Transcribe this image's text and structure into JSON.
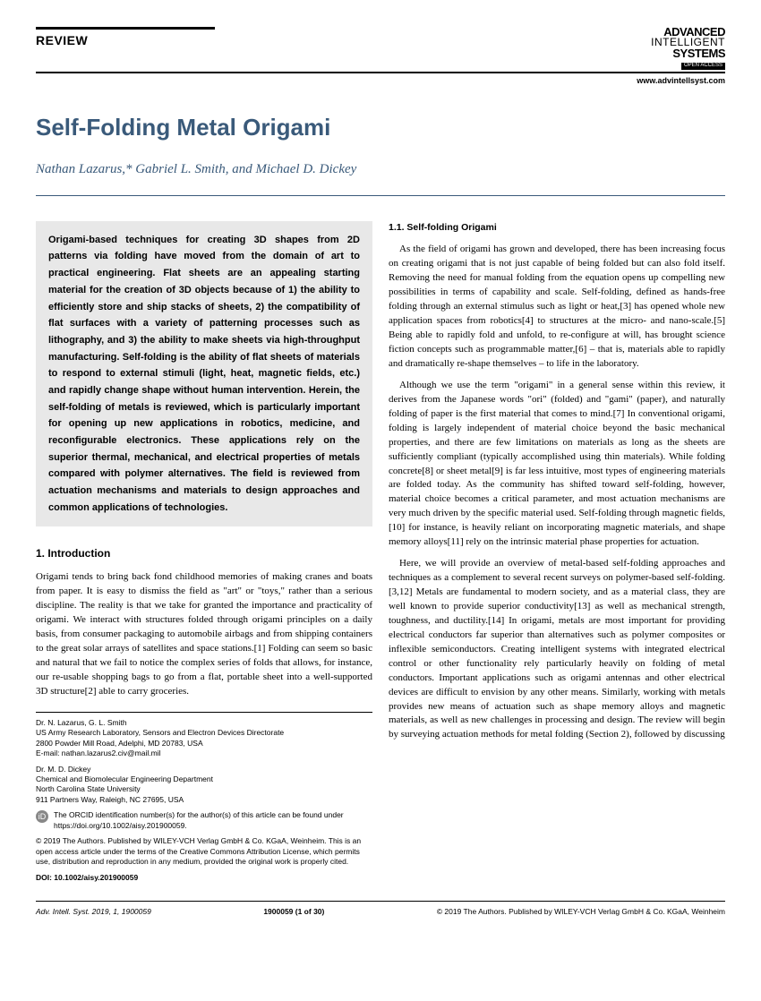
{
  "header": {
    "review_label": "REVIEW",
    "logo": {
      "line1": "ADVANCED",
      "line2": "INTELLIGENT",
      "line3": "SYSTEMS",
      "access": "OPEN ACCESS"
    },
    "url": "www.advintellsyst.com"
  },
  "title": "Self-Folding Metal Origami",
  "authors": "Nathan Lazarus,* Gabriel L. Smith, and Michael D. Dickey",
  "abstract": "Origami-based techniques for creating 3D shapes from 2D patterns via folding have moved from the domain of art to practical engineering. Flat sheets are an appealing starting material for the creation of 3D objects because of 1) the ability to efficiently store and ship stacks of sheets, 2) the compatibility of flat surfaces with a variety of patterning processes such as lithography, and 3) the ability to make sheets via high-throughput manufacturing. Self-folding is the ability of flat sheets of materials to respond to external stimuli (light, heat, magnetic fields, etc.) and rapidly change shape without human intervention. Herein, the self-folding of metals is reviewed, which is particularly important for opening up new applications in robotics, medicine, and reconfigurable electronics. These applications rely on the superior thermal, mechanical, and electrical properties of metals compared with polymer alternatives. The field is reviewed from actuation mechanisms and materials to design approaches and common applications of technologies.",
  "section1": {
    "heading": "1. Introduction",
    "para1": "Origami tends to bring back fond childhood memories of making cranes and boats from paper. It is easy to dismiss the field as \"art\" or \"toys,\" rather than a serious discipline. The reality is that we take for granted the importance and practicality of origami. We interact with structures folded through origami principles on a daily basis, from consumer packaging to automobile airbags and from shipping containers to the great solar arrays of satellites and space stations.[1] Folding can seem so basic and natural that we fail to notice the complex series of folds that allows, for instance, our re-usable shopping bags to go from a flat, portable sheet into a well-supported 3D structure[2] able to carry groceries."
  },
  "subsection11": {
    "heading": "1.1. Self-folding Origami",
    "para1": "As the field of origami has grown and developed, there has been increasing focus on creating origami that is not just capable of being folded but can also fold itself. Removing the need for manual folding from the equation opens up compelling new possibilities in terms of capability and scale. Self-folding, defined as hands-free folding through an external stimulus such as light or heat,[3] has opened whole new application spaces from robotics[4] to structures at the micro- and nano-scale.[5] Being able to rapidly fold and unfold, to re-configure at will, has brought science fiction concepts such as programmable matter,[6] – that is, materials able to rapidly and dramatically re-shape themselves – to life in the laboratory.",
    "para2": "Although we use the term \"origami\" in a general sense within this review, it derives from the Japanese words \"ori\" (folded) and \"gami\" (paper), and naturally folding of paper is the first material that comes to mind.[7] In conventional origami, folding is largely independent of material choice beyond the basic mechanical properties, and there are few limitations on materials as long as the sheets are sufficiently compliant (typically accomplished using thin materials). While folding concrete[8] or sheet metal[9] is far less intuitive, most types of engineering materials are folded today. As the community has shifted toward self-folding, however, material choice becomes a critical parameter, and most actuation mechanisms are very much driven by the specific material used. Self-folding through magnetic fields,[10] for instance, is heavily reliant on incorporating magnetic materials, and shape memory alloys[11] rely on the intrinsic material phase properties for actuation.",
    "para3": "Here, we will provide an overview of metal-based self-folding approaches and techniques as a complement to several recent surveys on polymer-based self-folding.[3,12] Metals are fundamental to modern society, and as a material class, they are well known to provide superior conductivity[13] as well as mechanical strength, toughness, and ductility.[14] In origami, metals are most important for providing electrical conductors far superior than alternatives such as polymer composites or inflexible semiconductors. Creating intelligent systems with integrated electrical control or other functionality rely particularly heavily on folding of metal conductors. Important applications such as origami antennas and other electrical devices are difficult to envision by any other means. Similarly, working with metals provides new means of actuation such as shape memory alloys and magnetic materials, as well as new challenges in processing and design. The review will begin by surveying actuation methods for metal folding (Section 2), followed by discussing"
  },
  "affiliations": {
    "block1": {
      "names": "Dr. N. Lazarus, G. L. Smith",
      "line1": "US Army Research Laboratory, Sensors and Electron Devices Directorate",
      "line2": "2800 Powder Mill Road, Adelphi, MD 20783, USA",
      "email": "E-mail: nathan.lazarus2.civ@mail.mil"
    },
    "block2": {
      "names": "Dr. M. D. Dickey",
      "line1": "Chemical and Biomolecular Engineering Department",
      "line2": "North Carolina State University",
      "line3": "911 Partners Way, Raleigh, NC 27695, USA"
    },
    "orcid": "The ORCID identification number(s) for the author(s) of this article can be found under https://doi.org/10.1002/aisy.201900059.",
    "copyright": "© 2019 The Authors. Published by WILEY-VCH Verlag GmbH & Co. KGaA, Weinheim. This is an open access article under the terms of the Creative Commons Attribution License, which permits use, distribution and reproduction in any medium, provided the original work is properly cited.",
    "doi": "DOI: 10.1002/aisy.201900059"
  },
  "footer": {
    "left": "Adv. Intell. Syst. 2019, 1, 1900059",
    "center": "1900059 (1 of 30)",
    "right": "© 2019 The Authors. Published by WILEY-VCH Verlag GmbH & Co. KGaA, Weinheim"
  }
}
